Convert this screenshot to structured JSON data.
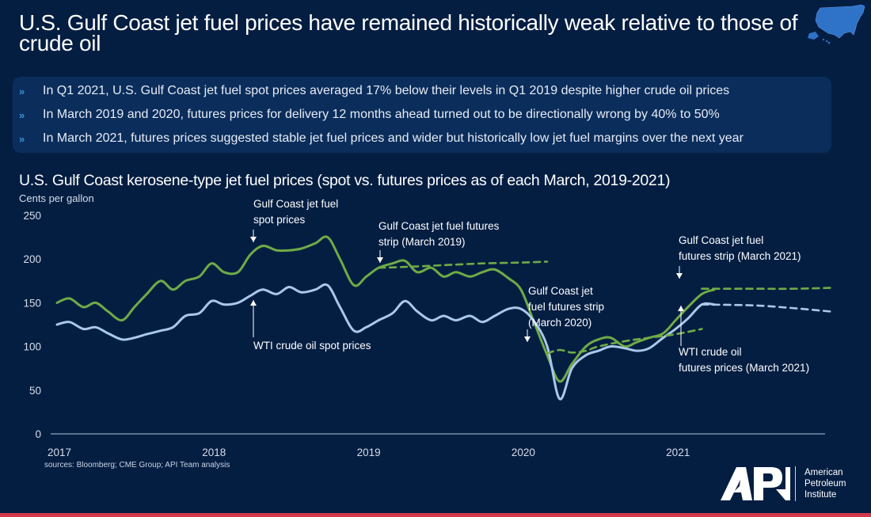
{
  "header": {
    "title": "U.S. Gulf Coast jet fuel prices have remained historically weak relative to those of crude oil",
    "map_icon": "us-map-icon"
  },
  "bullets": [
    {
      "icon": "double-chevron-right-icon",
      "text": "In Q1 2021, U.S. Gulf Coast jet fuel spot prices averaged 17% below their levels in Q1 2019 despite higher crude oil prices"
    },
    {
      "icon": "double-chevron-right-icon",
      "text": "In March 2019 and 2020, futures prices for delivery 12 months ahead turned out to be directionally wrong by 40% to 50%"
    },
    {
      "icon": "double-chevron-right-icon",
      "text": "In March 2021, futures prices suggested stable jet fuel prices and wider but historically low jet fuel margins over the next year"
    }
  ],
  "footer": {
    "source": "sources:  Bloomberg; CME Group; API Team analysis",
    "logo_text": "API",
    "org_name_lines": [
      "American",
      "Petroleum",
      "Institute"
    ]
  },
  "colors": {
    "background": "#041e42",
    "jet_fuel": "#6fab46",
    "wti": "#a9c8ea",
    "bullet_box": "#0b2d5b",
    "accent_bar": "#d2394d"
  },
  "chart_data": {
    "type": "line",
    "title": "U.S. Gulf Coast kerosene-type jet fuel prices (spot vs. futures prices as of each March, 2019-2021)",
    "ylabel": "Cents per gallon",
    "xlabel": "",
    "ylim": [
      0,
      250
    ],
    "xlim": [
      2017.0,
      2022.0
    ],
    "y_ticks": [
      0,
      50,
      100,
      150,
      200,
      250
    ],
    "x_ticks": [
      2017,
      2018,
      2019,
      2020,
      2021
    ],
    "grid": false,
    "legend": "none (inline annotations)",
    "series": [
      {
        "name": "Gulf Coast jet fuel spot prices",
        "style": "solid",
        "color": "#6fab46",
        "x": [
          2017.0,
          2017.08,
          2017.17,
          2017.25,
          2017.33,
          2017.42,
          2017.5,
          2017.58,
          2017.67,
          2017.75,
          2017.83,
          2017.92,
          2018.0,
          2018.08,
          2018.17,
          2018.25,
          2018.33,
          2018.42,
          2018.5,
          2018.58,
          2018.67,
          2018.75,
          2018.83,
          2018.92,
          2019.0,
          2019.08,
          2019.17,
          2019.25,
          2019.33,
          2019.42,
          2019.5,
          2019.58,
          2019.67,
          2019.75,
          2019.83,
          2019.92,
          2020.0,
          2020.08,
          2020.17,
          2020.25,
          2020.33,
          2020.42,
          2020.5,
          2020.58,
          2020.67,
          2020.75,
          2020.83,
          2020.92,
          2021.0,
          2021.08,
          2021.17,
          2021.25
        ],
        "values": [
          150,
          155,
          145,
          150,
          140,
          130,
          145,
          160,
          175,
          165,
          175,
          180,
          195,
          185,
          185,
          205,
          215,
          210,
          210,
          212,
          218,
          225,
          200,
          170,
          180,
          190,
          195,
          198,
          185,
          190,
          180,
          185,
          180,
          185,
          188,
          178,
          165,
          130,
          90,
          60,
          80,
          100,
          108,
          110,
          100,
          105,
          110,
          115,
          130,
          145,
          160,
          165
        ]
      },
      {
        "name": "WTI crude oil spot prices",
        "style": "solid",
        "color": "#a9c8ea",
        "x": [
          2017.0,
          2017.08,
          2017.17,
          2017.25,
          2017.33,
          2017.42,
          2017.5,
          2017.58,
          2017.67,
          2017.75,
          2017.83,
          2017.92,
          2018.0,
          2018.08,
          2018.17,
          2018.25,
          2018.33,
          2018.42,
          2018.5,
          2018.58,
          2018.67,
          2018.75,
          2018.83,
          2018.92,
          2019.0,
          2019.08,
          2019.17,
          2019.25,
          2019.33,
          2019.42,
          2019.5,
          2019.58,
          2019.67,
          2019.75,
          2019.83,
          2019.92,
          2020.0,
          2020.08,
          2020.17,
          2020.25,
          2020.33,
          2020.42,
          2020.5,
          2020.58,
          2020.67,
          2020.75,
          2020.83,
          2020.92,
          2021.0,
          2021.08,
          2021.17,
          2021.25
        ],
        "values": [
          125,
          128,
          120,
          122,
          115,
          108,
          110,
          114,
          118,
          122,
          135,
          138,
          152,
          148,
          150,
          158,
          165,
          160,
          168,
          162,
          165,
          170,
          145,
          118,
          122,
          130,
          138,
          152,
          140,
          130,
          135,
          130,
          135,
          128,
          135,
          143,
          143,
          130,
          100,
          40,
          75,
          90,
          95,
          100,
          98,
          95,
          98,
          110,
          120,
          132,
          148,
          148
        ]
      },
      {
        "name": "Gulf Coast jet fuel futures strip (March 2019)",
        "style": "dashed",
        "color": "#6fab46",
        "x": [
          2019.08,
          2019.25,
          2019.5,
          2019.75,
          2020.0,
          2020.17
        ],
        "values": [
          190,
          191,
          193,
          195,
          196,
          197
        ]
      },
      {
        "name": "Gulf Coast jet fuel futures strip (March 2020)",
        "style": "dashed",
        "color": "#6fab46",
        "x": [
          2020.17,
          2020.25,
          2020.33,
          2020.42,
          2020.5,
          2020.67,
          2020.83,
          2021.0,
          2021.17
        ],
        "values": [
          92,
          96,
          93,
          95,
          100,
          106,
          110,
          114,
          120
        ]
      },
      {
        "name": "Gulf Coast jet fuel futures strip (March 2021)",
        "style": "dashed",
        "color": "#6fab46",
        "x": [
          2021.17,
          2021.5,
          2021.75,
          2022.0
        ],
        "values": [
          166,
          166,
          166,
          167
        ]
      },
      {
        "name": "WTI crude oil futures prices (March 2021)",
        "style": "dashed",
        "color": "#a9c8ea",
        "x": [
          2021.17,
          2021.5,
          2021.75,
          2022.0
        ],
        "values": [
          148,
          147,
          144,
          140
        ]
      }
    ],
    "annotations": [
      {
        "lines": [
          "Gulf Coast jet fuel",
          "spot prices"
        ],
        "arrow": "down",
        "x": 2018.27,
        "y": 212
      },
      {
        "lines": [
          "Gulf Coast jet fuel futures",
          "strip (March 2019)"
        ],
        "arrow": "down",
        "x": 2019.08,
        "y": 196
      },
      {
        "lines": [
          "WTI crude oil spot prices"
        ],
        "arrow": "up",
        "x": 2018.27,
        "y": 155
      },
      {
        "lines": [
          "Gulf Coast jet",
          "fuel futures strip",
          "(March 2020)"
        ],
        "arrow": "down",
        "x": 2020.05,
        "y": 105
      },
      {
        "lines": [
          "Gulf Coast jet fuel",
          "futures strip (March 2021)"
        ],
        "arrow": "down",
        "x": 2021.03,
        "y": 175
      },
      {
        "lines": [
          "WTI crude oil",
          "futures prices (March 2021)"
        ],
        "arrow": "up",
        "x": 2021.03,
        "y": 143
      }
    ]
  }
}
